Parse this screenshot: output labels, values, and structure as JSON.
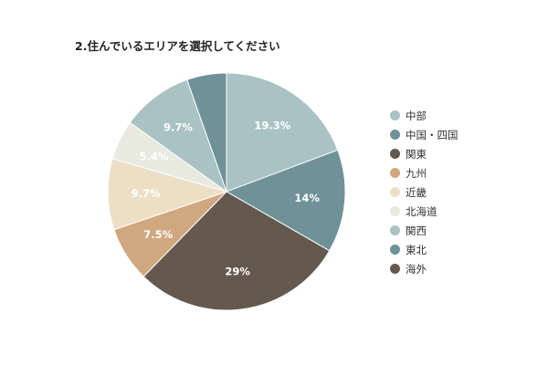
{
  "chart_data": {
    "type": "pie",
    "title": "2.住んでいるエリアを選択してください",
    "slices": [
      {
        "label": "中部",
        "value": 19.3,
        "display": "19.3%",
        "color": "#a9c2c3"
      },
      {
        "label": "中国・四国",
        "value": 14,
        "display": "14%",
        "color": "#6e9297"
      },
      {
        "label": "関東",
        "value": 29,
        "display": "29%",
        "color": "#65584e"
      },
      {
        "label": "九州",
        "value": 7.5,
        "display": "7.5%",
        "color": "#cfa880"
      },
      {
        "label": "近畿",
        "value": 9.7,
        "display": "9.7%",
        "color": "#ecdfc6"
      },
      {
        "label": "北海道",
        "value": 5.4,
        "display": "5.4%",
        "color": "#e8e9df"
      },
      {
        "label": "関西",
        "value": 9.7,
        "display": "9.7%",
        "color": "#a9c2c3"
      },
      {
        "label": "東北",
        "value": 5.4,
        "display": "",
        "color": "#6e9297"
      },
      {
        "label": "海外",
        "value": 0,
        "display": "",
        "color": "#65584e"
      }
    ],
    "legend_position": "right"
  }
}
